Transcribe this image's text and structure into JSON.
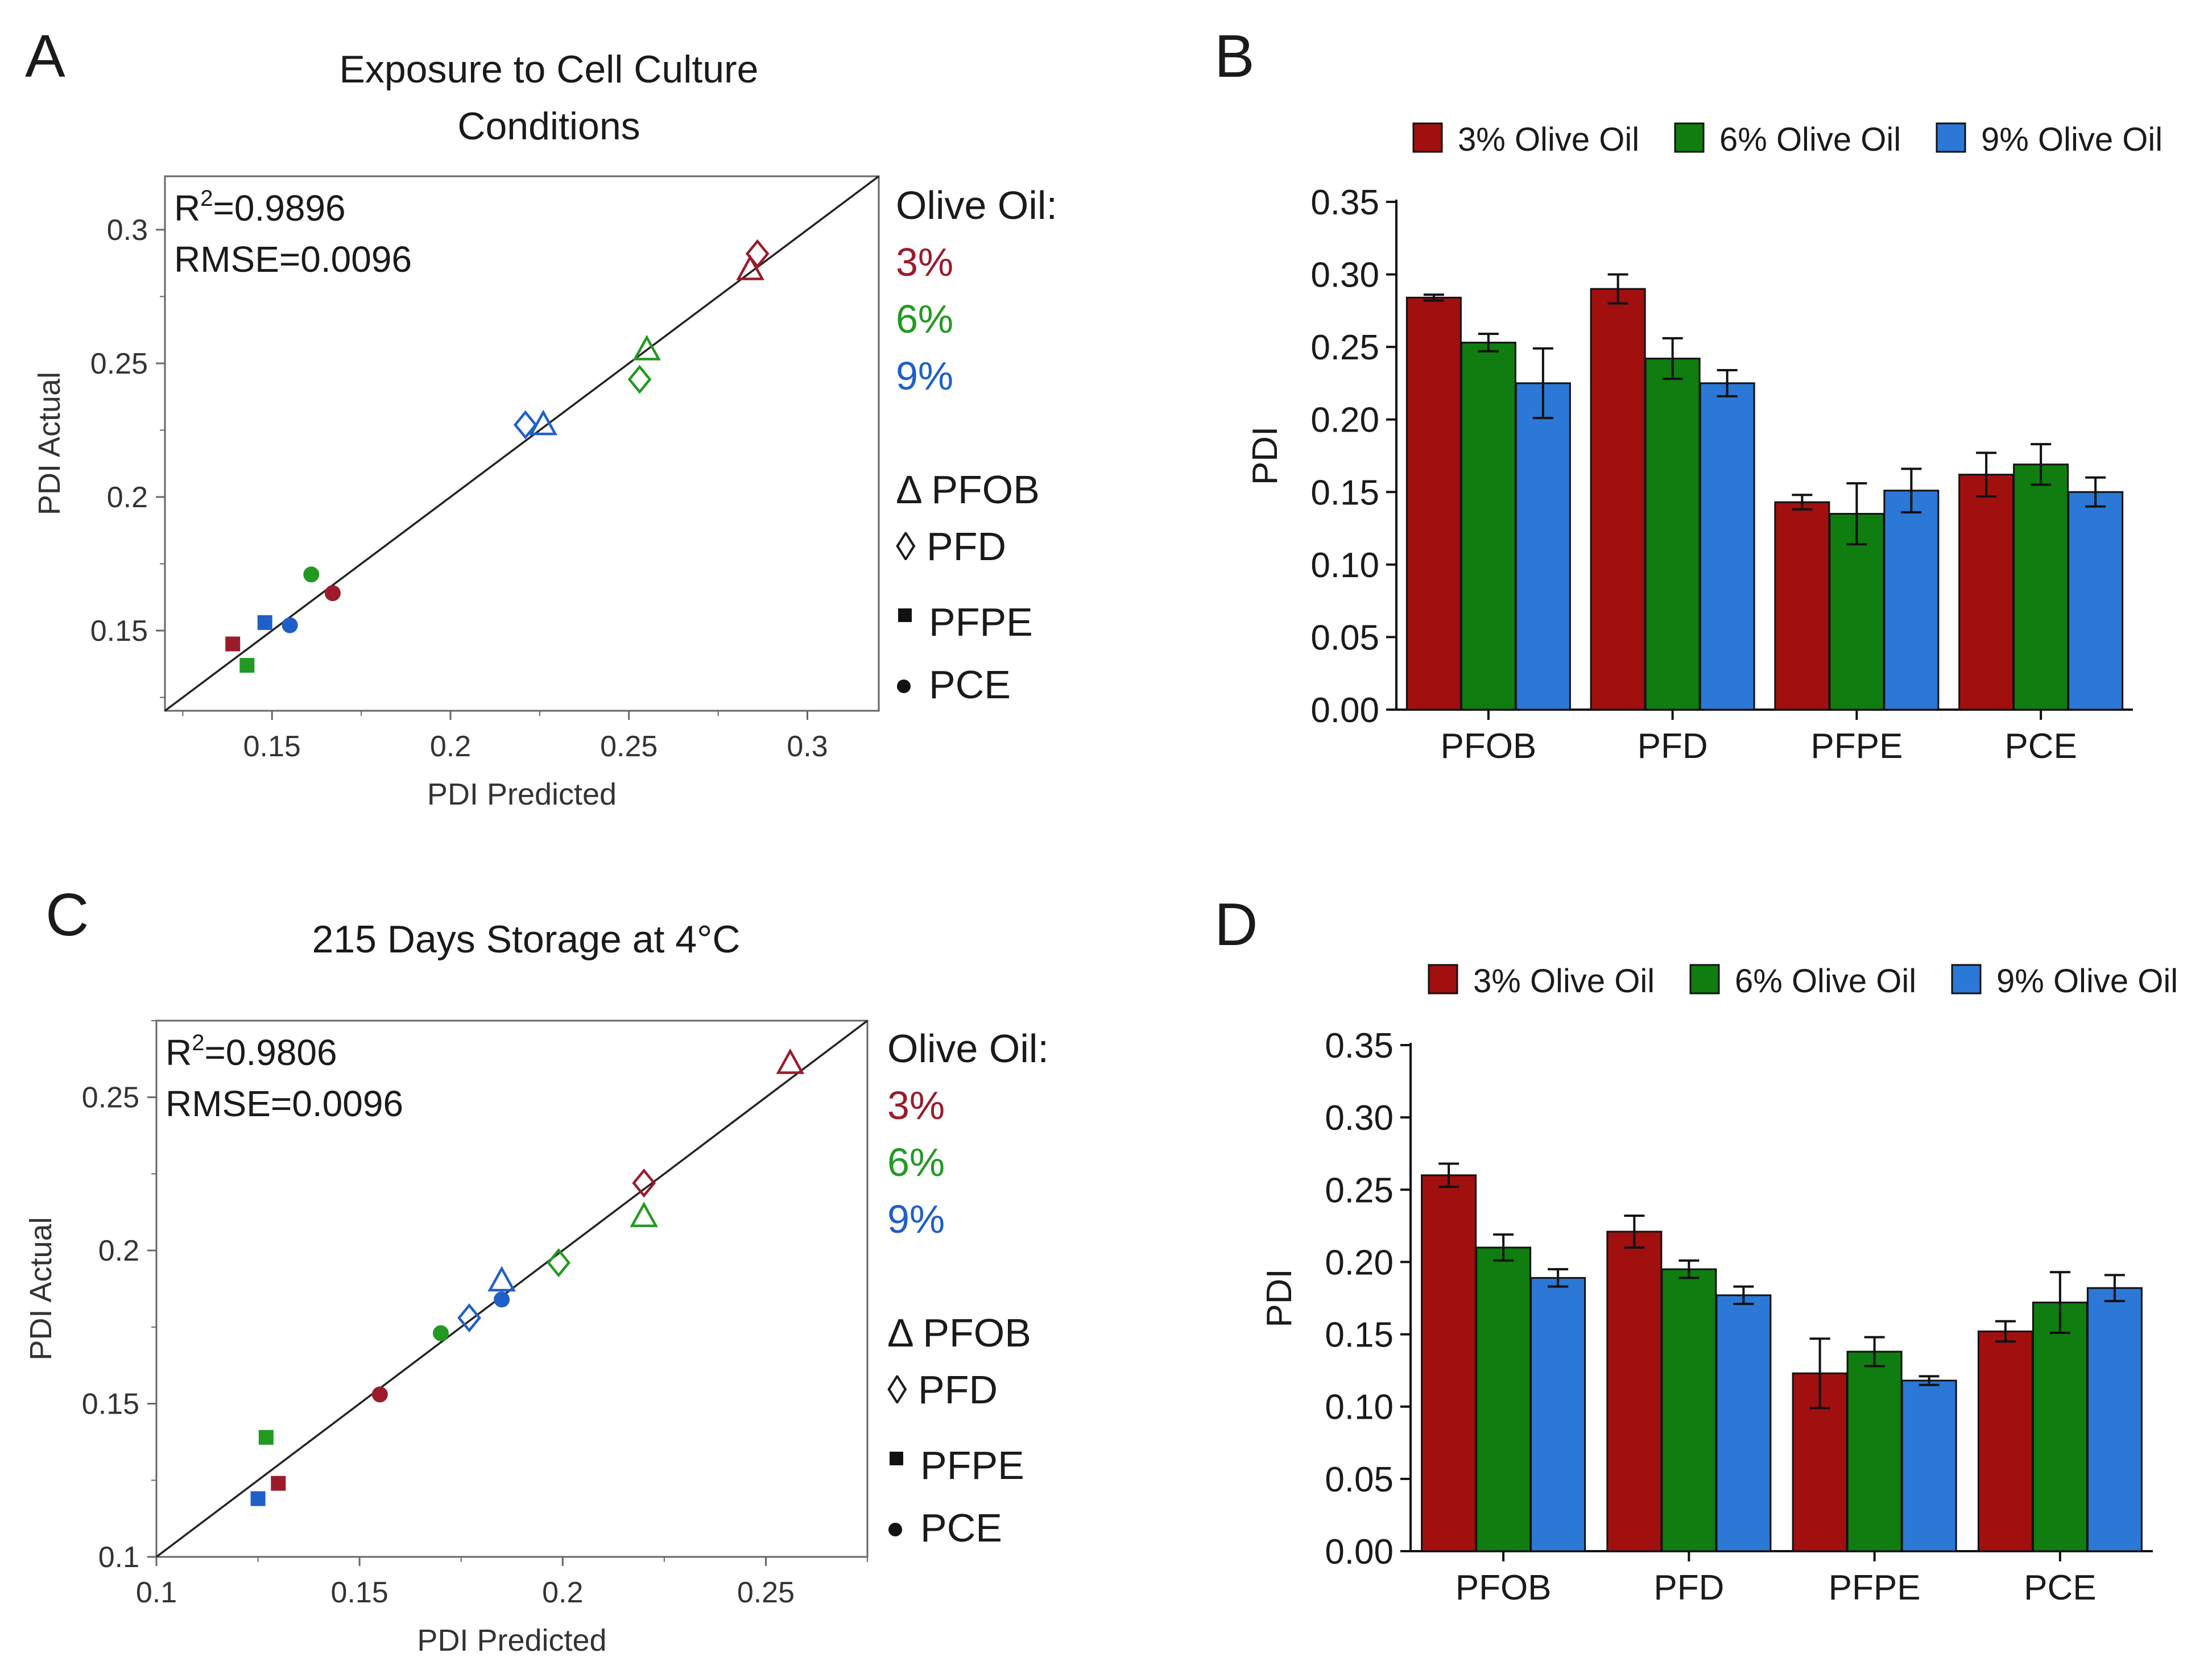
{
  "colors": {
    "red": "#9b1b2b",
    "green": "#229a22",
    "blue": "#1f5fc8",
    "bar_red": "#a10f0f",
    "bar_green": "#0f7d0f",
    "bar_blue": "#2b78d6"
  },
  "chart_data": [
    {
      "panel": "A",
      "type": "scatter",
      "title_lines": [
        "Exposure to Cell Culture",
        "Conditions"
      ],
      "xlabel": "PDI Predicted",
      "ylabel": "PDI Actual",
      "xlim": [
        0.12,
        0.32
      ],
      "ylim": [
        0.12,
        0.32
      ],
      "xticks": [
        "0.15",
        "0.2",
        "0.25",
        "0.3"
      ],
      "yticks": [
        "0.15",
        "0.2",
        "0.25",
        "0.3"
      ],
      "r2_prefix": "R",
      "r2_sup": "2",
      "r2_value": "=0.9896",
      "rmse": "RMSE=0.0096",
      "legend_title": "Olive Oil:",
      "legend_pcts": [
        "3%",
        "6%",
        "9%"
      ],
      "legend_markers": [
        "Δ PFOB",
        "◊ PFD",
        "PFPE",
        "PCE"
      ],
      "points": [
        {
          "surfactant": "PFOB",
          "oil": "3%",
          "predicted": 0.284,
          "actual": 0.285
        },
        {
          "surfactant": "PFD",
          "oil": "3%",
          "predicted": 0.286,
          "actual": 0.291
        },
        {
          "surfactant": "PFOB",
          "oil": "6%",
          "predicted": 0.255,
          "actual": 0.255
        },
        {
          "surfactant": "PFD",
          "oil": "6%",
          "predicted": 0.253,
          "actual": 0.244
        },
        {
          "surfactant": "PFOB",
          "oil": "9%",
          "predicted": 0.226,
          "actual": 0.227
        },
        {
          "surfactant": "PFD",
          "oil": "9%",
          "predicted": 0.221,
          "actual": 0.227
        },
        {
          "surfactant": "PCE",
          "oil": "6%",
          "predicted": 0.161,
          "actual": 0.171
        },
        {
          "surfactant": "PCE",
          "oil": "3%",
          "predicted": 0.167,
          "actual": 0.164
        },
        {
          "surfactant": "PCE",
          "oil": "9%",
          "predicted": 0.155,
          "actual": 0.152
        },
        {
          "surfactant": "PFPE",
          "oil": "9%",
          "predicted": 0.148,
          "actual": 0.153
        },
        {
          "surfactant": "PFPE",
          "oil": "3%",
          "predicted": 0.139,
          "actual": 0.145
        },
        {
          "surfactant": "PFPE",
          "oil": "6%",
          "predicted": 0.143,
          "actual": 0.137
        }
      ]
    },
    {
      "panel": "B",
      "type": "bar",
      "ylabel": "PDI",
      "ylim": [
        0,
        0.35
      ],
      "yticks": [
        "0.00",
        "0.05",
        "0.10",
        "0.15",
        "0.20",
        "0.25",
        "0.30",
        "0.35"
      ],
      "categories": [
        "PFOB",
        "PFD",
        "PFPE",
        "PCE"
      ],
      "series": [
        {
          "name": "3% Olive Oil",
          "values": [
            0.284,
            0.29,
            0.143,
            0.162
          ],
          "errors": [
            0.002,
            0.01,
            0.005,
            0.015
          ]
        },
        {
          "name": "6% Olive Oil",
          "values": [
            0.253,
            0.242,
            0.135,
            0.169
          ],
          "errors": [
            0.006,
            0.014,
            0.021,
            0.014
          ]
        },
        {
          "name": "9% Olive Oil",
          "values": [
            0.225,
            0.225,
            0.151,
            0.15
          ],
          "errors": [
            0.024,
            0.009,
            0.015,
            0.01
          ]
        }
      ]
    },
    {
      "panel": "C",
      "type": "scatter",
      "title_lines": [
        "215 Days Storage at 4°C"
      ],
      "xlabel": "PDI Predicted",
      "ylabel": "PDI Actual",
      "xlim": [
        0.1,
        0.275
      ],
      "ylim": [
        0.1,
        0.275
      ],
      "xticks": [
        "0.1",
        "0.15",
        "0.2",
        "0.25"
      ],
      "yticks": [
        "0.1",
        "0.15",
        "0.2",
        "0.25"
      ],
      "r2_prefix": "R",
      "r2_sup": "2",
      "r2_value": "=0.9806",
      "rmse": "RMSE=0.0096",
      "legend_title": "Olive Oil:",
      "legend_pcts": [
        "3%",
        "6%",
        "9%"
      ],
      "legend_markers": [
        "Δ PFOB",
        "◊ PFD",
        "PFPE",
        "PCE"
      ],
      "points": [
        {
          "surfactant": "PFOB",
          "oil": "3%",
          "predicted": 0.256,
          "actual": 0.261
        },
        {
          "surfactant": "PFD",
          "oil": "3%",
          "predicted": 0.22,
          "actual": 0.222
        },
        {
          "surfactant": "PFOB",
          "oil": "6%",
          "predicted": 0.22,
          "actual": 0.211
        },
        {
          "surfactant": "PFD",
          "oil": "6%",
          "predicted": 0.199,
          "actual": 0.196
        },
        {
          "surfactant": "PFOB",
          "oil": "9%",
          "predicted": 0.185,
          "actual": 0.19
        },
        {
          "surfactant": "PFD",
          "oil": "9%",
          "predicted": 0.177,
          "actual": 0.178
        },
        {
          "surfactant": "PCE",
          "oil": "9%",
          "predicted": 0.185,
          "actual": 0.184
        },
        {
          "surfactant": "PCE",
          "oil": "6%",
          "predicted": 0.17,
          "actual": 0.173
        },
        {
          "surfactant": "PCE",
          "oil": "3%",
          "predicted": 0.155,
          "actual": 0.153
        },
        {
          "surfactant": "PFPE",
          "oil": "6%",
          "predicted": 0.127,
          "actual": 0.139
        },
        {
          "surfactant": "PFPE",
          "oil": "3%",
          "predicted": 0.13,
          "actual": 0.124
        },
        {
          "surfactant": "PFPE",
          "oil": "9%",
          "predicted": 0.125,
          "actual": 0.119
        }
      ]
    },
    {
      "panel": "D",
      "type": "bar",
      "ylabel": "PDI",
      "ylim": [
        0,
        0.35
      ],
      "yticks": [
        "0.00",
        "0.05",
        "0.10",
        "0.15",
        "0.20",
        "0.25",
        "0.30",
        "0.35"
      ],
      "categories": [
        "PFOB",
        "PFD",
        "PFPE",
        "PCE"
      ],
      "series": [
        {
          "name": "3% Olive Oil",
          "values": [
            0.26,
            0.221,
            0.123,
            0.152
          ],
          "errors": [
            0.008,
            0.011,
            0.024,
            0.007
          ]
        },
        {
          "name": "6% Olive Oil",
          "values": [
            0.21,
            0.195,
            0.138,
            0.172
          ],
          "errors": [
            0.009,
            0.006,
            0.01,
            0.021
          ]
        },
        {
          "name": "9% Olive Oil",
          "values": [
            0.189,
            0.177,
            0.118,
            0.182
          ],
          "errors": [
            0.006,
            0.006,
            0.003,
            0.009
          ]
        }
      ]
    }
  ]
}
